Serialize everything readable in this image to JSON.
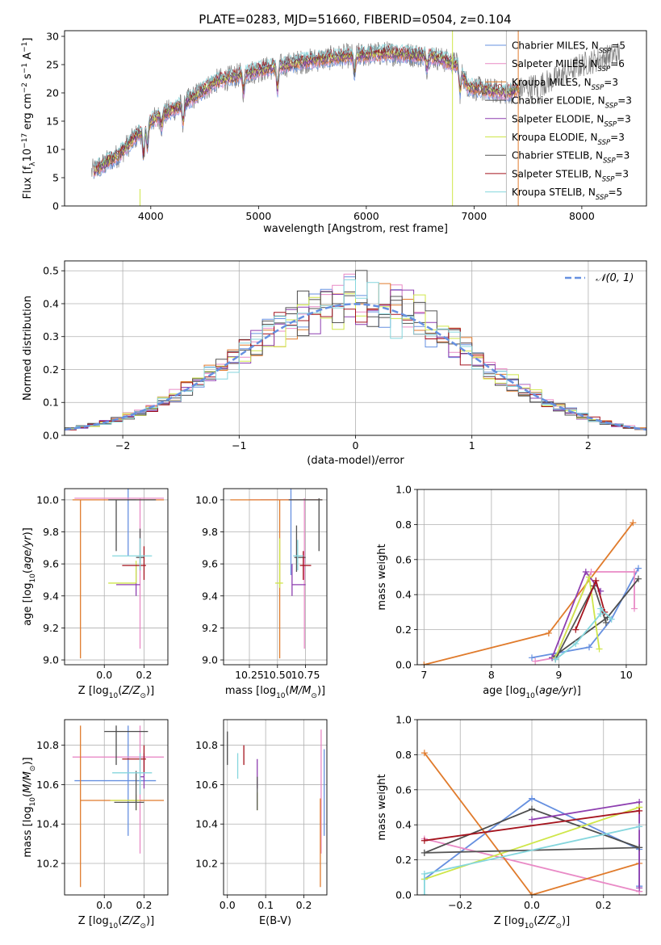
{
  "figure_title": "PLATE=0283, MJD=51660, FIBERID=0504, z=0.104",
  "legend_entries": [
    {
      "label": "Chabrier MILES, N",
      "sub": "SSP",
      "tail": "=5",
      "color": "#6690e0"
    },
    {
      "label": "Salpeter MILES, N",
      "sub": "SSP",
      "tail": "=6",
      "color": "#e98ac6"
    },
    {
      "label": "Kroupa MILES, N",
      "sub": "SSP",
      "tail": "=3",
      "color": "#e07b2c"
    },
    {
      "label": "Chabrier ELODIE, N",
      "sub": "SSP",
      "tail": "=3",
      "color": "#4d4d4d"
    },
    {
      "label": "Salpeter ELODIE, N",
      "sub": "SSP",
      "tail": "=3",
      "color": "#8e3fb0"
    },
    {
      "label": "Kroupa ELODIE, N",
      "sub": "SSP",
      "tail": "=3",
      "color": "#cfe64a"
    },
    {
      "label": "Chabrier STELIB, N",
      "sub": "SSP",
      "tail": "=3",
      "color": "#555555"
    },
    {
      "label": "Salpeter STELIB, N",
      "sub": "SSP",
      "tail": "=3",
      "color": "#a5141e"
    },
    {
      "label": "Kroupa STELIB, N",
      "sub": "SSP",
      "tail": "=5",
      "color": "#85d6dd"
    }
  ],
  "chart_data": [
    {
      "id": "spectrum",
      "type": "line",
      "xlabel": "wavelength [Angstrom, rest frame]",
      "ylabel": "Flux [f_λ 10^-17 erg cm^-2 s^-1 A^-1]",
      "xlim": [
        3200,
        8600
      ],
      "ylim": [
        0,
        31
      ],
      "xticks": [
        4000,
        5000,
        6000,
        7000,
        8000
      ],
      "yticks": [
        0,
        5,
        10,
        15,
        20,
        25,
        30
      ],
      "continuum": {
        "x": [
          3450,
          3700,
          4000,
          4300,
          4600,
          5000,
          5400,
          5800,
          6200,
          6600,
          6850,
          6950,
          7300,
          7500,
          7700,
          8000,
          8350
        ],
        "y": [
          6,
          9,
          15,
          18,
          22,
          24,
          25.5,
          26.5,
          27,
          26.5,
          25,
          21,
          20,
          21,
          22,
          25,
          27
        ]
      },
      "model_continuum_end": 7420,
      "observed_spikes": [
        6800,
        7300,
        7410
      ]
    },
    {
      "id": "residuals",
      "type": "histogram",
      "xlabel": "(data-model)/error",
      "ylabel": "Normed distribution",
      "xlim": [
        -2.5,
        2.5
      ],
      "ylim": [
        0,
        0.53
      ],
      "xticks": [
        -2,
        -1,
        0,
        1,
        2
      ],
      "yticks": [
        0,
        0.1,
        0.2,
        0.3,
        0.4,
        0.5
      ],
      "bin_width": 0.1,
      "gaussian_label": "𝒩(0, 1)"
    },
    {
      "id": "age_vs_Z",
      "type": "errorbar",
      "xlabel": "Z [log10(Z/Z⊙)]",
      "ylabel": "age [log10(age/yr)]",
      "xlim": [
        -0.2,
        0.32
      ],
      "ylim": [
        8.97,
        10.07
      ],
      "xticks": [
        0.0,
        0.2
      ],
      "yticks": [
        9.0,
        9.2,
        9.4,
        9.6,
        9.8,
        10.0
      ],
      "points": [
        {
          "x": 0.12,
          "xe": [
            0.12,
            0.16
          ],
          "y": 10.0,
          "ye": [
            9.65,
            10.12
          ]
        },
        {
          "x": 0.18,
          "xe": [
            -0.15,
            0.3
          ],
          "y": 10.01,
          "ye": [
            9.07,
            10.01
          ]
        },
        {
          "x": -0.12,
          "xe": [
            -0.16,
            0.3
          ],
          "y": 10.0,
          "ye": [
            9.01,
            10.0
          ]
        },
        {
          "x": 0.06,
          "xe": [
            0.02,
            0.26
          ],
          "y": 10.0,
          "ye": [
            9.68,
            10.0
          ]
        },
        {
          "x": 0.16,
          "xe": [
            0.06,
            0.18
          ],
          "y": 9.47,
          "ye": [
            9.4,
            9.6
          ]
        },
        {
          "x": 0.16,
          "xe": [
            0.02,
            0.16
          ],
          "y": 9.48,
          "ye": [
            9.48,
            9.62
          ]
        },
        {
          "x": 0.18,
          "xe": [
            0.16,
            0.2
          ],
          "y": 9.64,
          "ye": [
            9.56,
            9.82
          ]
        },
        {
          "x": 0.2,
          "xe": [
            0.09,
            0.21
          ],
          "y": 9.59,
          "ye": [
            9.5,
            9.71
          ]
        },
        {
          "x": 0.18,
          "xe": [
            0.04,
            0.24
          ],
          "y": 9.65,
          "ye": [
            9.56,
            9.76
          ]
        }
      ]
    },
    {
      "id": "age_vs_mass",
      "type": "errorbar",
      "xlabel": "mass [log10(M/M⊙)]",
      "ylabel": "",
      "xlim": [
        10.02,
        10.94
      ],
      "ylim": [
        8.97,
        10.07
      ],
      "xticks": [
        10.25,
        10.5,
        10.75
      ],
      "yticks": [
        9.0,
        9.2,
        9.4,
        9.6,
        9.8,
        10.0
      ],
      "points": [
        {
          "x": 10.62,
          "xe": [
            10.35,
            10.9
          ],
          "y": 10.0,
          "ye": [
            9.53,
            10.12
          ]
        },
        {
          "x": 10.74,
          "xe": [
            10.25,
            10.9
          ],
          "y": 10.0,
          "ye": [
            9.07,
            10.01
          ]
        },
        {
          "x": 10.52,
          "xe": [
            10.08,
            10.9
          ],
          "y": 10.0,
          "ye": [
            9.01,
            10.0
          ]
        },
        {
          "x": 10.87,
          "xe": [
            10.6,
            10.9
          ],
          "y": 10.0,
          "ye": [
            9.68,
            10.01
          ]
        },
        {
          "x": 10.63,
          "xe": [
            10.63,
            10.75
          ],
          "y": 9.47,
          "ye": [
            9.4,
            9.6
          ]
        },
        {
          "x": 10.52,
          "xe": [
            10.48,
            10.55
          ],
          "y": 9.48,
          "ye": [
            9.45,
            9.76
          ]
        },
        {
          "x": 10.67,
          "xe": [
            10.65,
            10.75
          ],
          "y": 9.64,
          "ye": [
            9.55,
            9.84
          ]
        },
        {
          "x": 10.73,
          "xe": [
            10.7,
            10.8
          ],
          "y": 9.59,
          "ye": [
            9.5,
            9.68
          ]
        },
        {
          "x": 10.68,
          "xe": [
            10.64,
            10.73
          ],
          "y": 9.65,
          "ye": [
            9.56,
            9.75
          ]
        }
      ]
    },
    {
      "id": "weight_vs_age",
      "type": "line",
      "xlabel": "age [log10(age/yr)]",
      "ylabel": "mass weight",
      "xlim": [
        6.9,
        10.3
      ],
      "ylim": [
        0,
        1
      ],
      "xticks": [
        7,
        8,
        9,
        10
      ],
      "yticks": [
        0.0,
        0.2,
        0.4,
        0.6,
        0.8,
        1.0
      ],
      "series": [
        {
          "x": [
            8.6,
            9.45,
            9.78,
            10.18
          ],
          "y": [
            0.04,
            0.1,
            0.26,
            0.55
          ]
        },
        {
          "x": [
            8.65,
            8.95,
            9.48,
            10.12,
            10.12
          ],
          "y": [
            0.02,
            0.04,
            0.53,
            0.53,
            0.32
          ]
        },
        {
          "x": [
            7.0,
            8.85,
            10.1
          ],
          "y": [
            0.0,
            0.18,
            0.81
          ]
        },
        {
          "x": [
            8.9,
            9.72,
            10.18
          ],
          "y": [
            0.04,
            0.27,
            0.49
          ]
        },
        {
          "x": [
            8.9,
            9.4,
            9.62
          ],
          "y": [
            0.04,
            0.53,
            0.42
          ]
        },
        {
          "x": [
            8.95,
            9.45,
            9.6
          ],
          "y": [
            0.04,
            0.5,
            0.09
          ]
        },
        {
          "x": [
            8.95,
            9.52,
            9.7
          ],
          "y": [
            0.03,
            0.45,
            0.24
          ]
        },
        {
          "x": [
            9.25,
            9.55,
            9.68
          ],
          "y": [
            0.2,
            0.48,
            0.3
          ]
        },
        {
          "x": [
            8.95,
            9.25,
            9.62,
            9.62,
            9.78
          ],
          "y": [
            0.03,
            0.12,
            0.29,
            0.32,
            0.26
          ]
        }
      ]
    },
    {
      "id": "mass_vs_Z",
      "type": "errorbar",
      "xlabel": "Z [log10(Z/Z⊙)]",
      "ylabel": "mass [log10(M/M⊙)]",
      "xlim": [
        -0.2,
        0.32
      ],
      "ylim": [
        10.04,
        10.93
      ],
      "xticks": [
        0.0,
        0.2
      ],
      "yticks": [
        10.2,
        10.4,
        10.6,
        10.8
      ],
      "points": [
        {
          "x": 0.12,
          "xe": [
            -0.15,
            0.26
          ],
          "y": 10.62,
          "ye": [
            10.34,
            10.9
          ]
        },
        {
          "x": 0.18,
          "xe": [
            -0.16,
            0.3
          ],
          "y": 10.74,
          "ye": [
            10.25,
            10.9
          ]
        },
        {
          "x": -0.12,
          "xe": [
            -0.12,
            0.3
          ],
          "y": 10.52,
          "ye": [
            10.08,
            10.9
          ]
        },
        {
          "x": 0.06,
          "xe": [
            0.0,
            0.22
          ],
          "y": 10.87,
          "ye": [
            10.7,
            10.9
          ]
        },
        {
          "x": 0.2,
          "xe": [
            0.18,
            0.2
          ],
          "y": 10.64,
          "ye": [
            10.58,
            10.76
          ]
        },
        {
          "x": 0.16,
          "xe": [
            0.03,
            0.18
          ],
          "y": 10.52,
          "ye": [
            10.47,
            10.55
          ]
        },
        {
          "x": 0.16,
          "xe": [
            0.05,
            0.2
          ],
          "y": 10.51,
          "ye": [
            10.47,
            10.67
          ]
        },
        {
          "x": 0.2,
          "xe": [
            0.09,
            0.21
          ],
          "y": 10.73,
          "ye": [
            10.66,
            10.8
          ]
        },
        {
          "x": 0.18,
          "xe": [
            0.04,
            0.24
          ],
          "y": 10.66,
          "ye": [
            10.55,
            10.76
          ]
        }
      ]
    },
    {
      "id": "mass_vs_ebv",
      "type": "errorbar",
      "xlabel": "E(B-V)",
      "ylabel": "",
      "xlim": [
        -0.01,
        0.26
      ],
      "ylim": [
        10.04,
        10.93
      ],
      "xticks": [
        0.0,
        0.1,
        0.2
      ],
      "yticks": [
        10.2,
        10.4,
        10.6,
        10.8
      ],
      "points": [
        {
          "x": 0.253,
          "y": 10.62,
          "ye": [
            10.34,
            10.78
          ]
        },
        {
          "x": 0.245,
          "y": 10.74,
          "ye": [
            10.25,
            10.88
          ]
        },
        {
          "x": 0.243,
          "y": 10.52,
          "ye": [
            10.08,
            10.53
          ]
        },
        {
          "x": 0.0,
          "y": 10.87,
          "ye": [
            10.7,
            10.87
          ]
        },
        {
          "x": 0.078,
          "y": 10.64,
          "ye": [
            10.58,
            10.73
          ]
        },
        {
          "x": 0.078,
          "y": 10.52,
          "ye": [
            10.47,
            10.56
          ]
        },
        {
          "x": 0.078,
          "y": 10.51,
          "ye": [
            10.47,
            10.64
          ]
        },
        {
          "x": 0.043,
          "y": 10.73,
          "ye": [
            10.7,
            10.8
          ]
        },
        {
          "x": 0.027,
          "y": 10.66,
          "ye": [
            10.63,
            10.76
          ]
        }
      ]
    },
    {
      "id": "weight_vs_Z",
      "type": "line",
      "xlabel": "Z [log10(Z/Z⊙)]",
      "ylabel": "mass weight",
      "xlim": [
        -0.32,
        0.32
      ],
      "ylim": [
        0,
        1
      ],
      "xticks": [
        -0.2,
        0.0,
        0.2
      ],
      "yticks": [
        0.0,
        0.2,
        0.4,
        0.6,
        0.8,
        1.0
      ],
      "series": [
        {
          "x": [
            -0.3,
            0.0,
            0.3,
            0.3,
            0.3
          ],
          "y": [
            0.09,
            0.55,
            0.26,
            0.05,
            0.05
          ]
        },
        {
          "x": [
            -0.3,
            0.3,
            0.3
          ],
          "y": [
            0.32,
            0.02,
            0.02
          ]
        },
        {
          "x": [
            -0.3,
            0.0,
            0.3
          ],
          "y": [
            0.81,
            0.0,
            0.18
          ]
        },
        {
          "x": [
            -0.3,
            0.0,
            0.3
          ],
          "y": [
            0.24,
            0.49,
            0.27
          ]
        },
        {
          "x": [
            0.0,
            0.3,
            0.3
          ],
          "y": [
            0.43,
            0.53,
            0.04
          ]
        },
        {
          "x": [
            -0.3,
            0.3,
            0.3
          ],
          "y": [
            0.09,
            0.5,
            0.5
          ]
        },
        {
          "x": [
            -0.3,
            0.3
          ],
          "y": [
            0.24,
            0.27
          ]
        },
        {
          "x": [
            -0.3,
            0.3
          ],
          "y": [
            0.31,
            0.48
          ]
        },
        {
          "x": [
            -0.3,
            -0.3,
            0.3
          ],
          "y": [
            0.0,
            0.12,
            0.39
          ]
        }
      ]
    }
  ]
}
